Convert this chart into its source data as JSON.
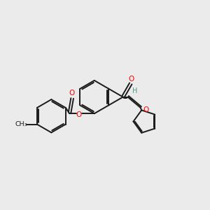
{
  "background_color": "#ebebeb",
  "bond_color": "#1a1a1a",
  "O_color": "#ff0000",
  "H_color": "#4a9595",
  "figsize": [
    3.0,
    3.0
  ],
  "dpi": 100,
  "lw": 1.4,
  "xlim": [
    -3.8,
    4.0
  ],
  "ylim": [
    -2.8,
    2.8
  ]
}
